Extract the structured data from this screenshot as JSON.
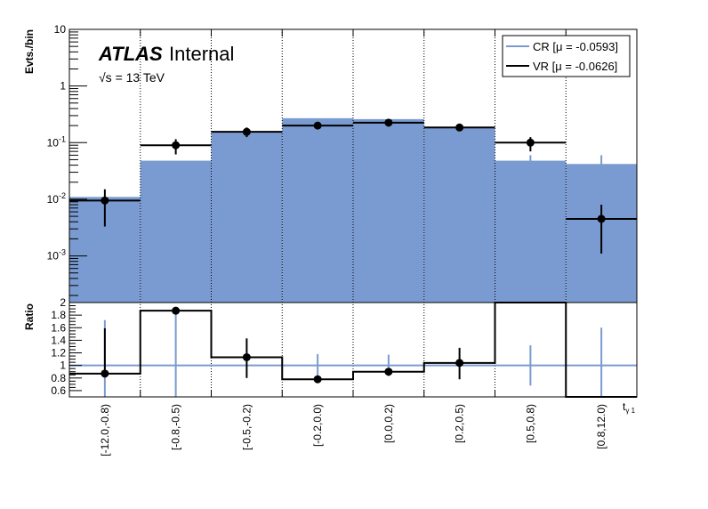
{
  "chart_data": [
    {
      "type": "bar",
      "panel": "main",
      "ylabel": "Evts./bin",
      "yscale": "log",
      "ylim": [
        0.00015,
        10
      ],
      "yticks": [
        {
          "value": 10,
          "label": "10"
        },
        {
          "value": 1,
          "label": "1"
        },
        {
          "value": 0.1,
          "label": "10^-1"
        },
        {
          "value": 0.01,
          "label": "10^-2"
        },
        {
          "value": 0.001,
          "label": "10^-3"
        }
      ],
      "categories": [
        "[-12.0,-0.8)",
        "[-0.8,-0.5)",
        "[-0.5,-0.2)",
        "[-0.2,0.0)",
        "[0.0,0.2)",
        "[0.2,0.5)",
        "[0.5,0.8)",
        "[0.8,12.0)"
      ],
      "series": [
        {
          "name": "CR [μ = -0.0593]",
          "color": "#7a9bd1",
          "values": [
            0.011,
            0.048,
            0.15,
            0.27,
            0.26,
            0.19,
            0.048,
            0.042
          ],
          "errors": [
            0.0,
            0.0,
            0.0,
            0.0,
            0.0,
            0.0,
            0.012,
            0.018
          ]
        },
        {
          "name": "VR [μ = -0.0626]",
          "color": "#000000",
          "values": [
            0.0095,
            0.09,
            0.155,
            0.2,
            0.225,
            0.185,
            0.1,
            0.0045
          ],
          "err_low": [
            0.0062,
            0.028,
            0.03,
            0.025,
            0.03,
            0.02,
            0.03,
            0.0034
          ],
          "err_high": [
            0.0055,
            0.025,
            0.03,
            0.02,
            0.028,
            0.02,
            0.025,
            0.0035
          ]
        }
      ],
      "annotations": {
        "experiment": "ATLAS",
        "status": "Internal",
        "energy": "√s = 13 TeV"
      }
    },
    {
      "type": "line",
      "panel": "ratio",
      "ylabel": "Ratio",
      "ylim": [
        0.5,
        2.0
      ],
      "yticks": [
        0.6,
        0.8,
        1,
        1.2,
        1.4,
        1.6,
        1.8,
        2
      ],
      "xlabel": "tγ 1",
      "categories": [
        "[-12.0,-0.8)",
        "[-0.8,-0.5)",
        "[-0.5,-0.2)",
        "[-0.2,0.0)",
        "[0.0,0.2)",
        "[0.2,0.5)",
        "[0.5,0.8)",
        "[0.8,12.0)"
      ],
      "series": [
        {
          "name": "CR",
          "color": "#7a9bd1",
          "values": [
            1,
            1,
            1,
            1,
            1,
            1,
            1,
            1
          ],
          "errors": [
            0.72,
            0.85,
            0.0,
            0.18,
            0.17,
            0.0,
            0.32,
            0.6
          ]
        },
        {
          "name": "VR",
          "color": "#000000",
          "values": [
            0.87,
            1.87,
            1.13,
            0.78,
            0.9,
            1.04,
            2.0,
            0.5
          ],
          "err_low": [
            0.0,
            0.0,
            0.33,
            0.0,
            0.0,
            0.26,
            0.0,
            0.0
          ],
          "err_high": [
            0.72,
            0.0,
            0.3,
            0.0,
            0.0,
            0.24,
            0.0,
            0.0
          ],
          "markers": [
            true,
            true,
            true,
            true,
            true,
            true,
            false,
            false
          ]
        }
      ]
    }
  ]
}
